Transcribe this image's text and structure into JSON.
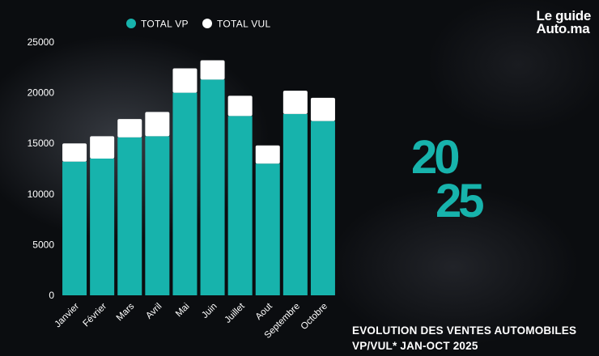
{
  "brand": {
    "line1": "Le guide",
    "line2": "Auto.ma"
  },
  "year_graphic": {
    "top": "20",
    "bottom": "25"
  },
  "caption": {
    "line1": "EVOLUTION DES VENTES AUTOMOBILES",
    "line2": "VP/VUL* JAN-OCT 2025"
  },
  "colors": {
    "vp": "#17b3ac",
    "vul": "#ffffff",
    "axis_text": "#ffffff"
  },
  "chart_data": {
    "type": "bar",
    "stacked": true,
    "categories": [
      "Janvier",
      "Février",
      "Mars",
      "Avril",
      "Mai",
      "Juin",
      "Juillet",
      "Aout",
      "Septembre",
      "Octobre"
    ],
    "series": [
      {
        "name": "TOTAL VP",
        "values": [
          13200,
          13500,
          15600,
          15700,
          20000,
          21300,
          17700,
          13000,
          17900,
          17200
        ]
      },
      {
        "name": "TOTAL VUL",
        "values": [
          1800,
          2200,
          1800,
          2400,
          2400,
          1900,
          2000,
          1800,
          2300,
          2300
        ]
      }
    ],
    "yticks": [
      0,
      5000,
      10000,
      15000,
      20000,
      25000
    ],
    "ylim": [
      0,
      25000
    ],
    "grid": false,
    "legend": "top-center"
  }
}
